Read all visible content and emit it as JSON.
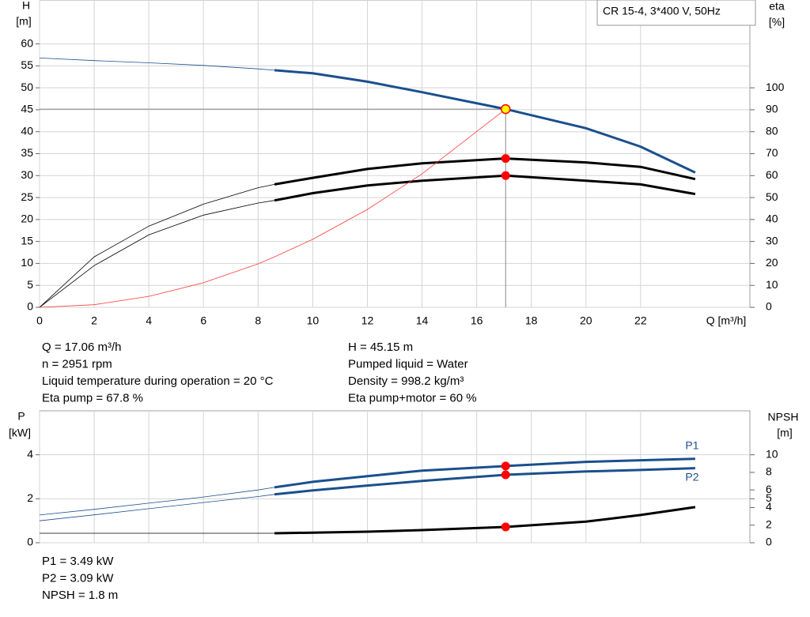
{
  "chart_data": [
    {
      "type": "line",
      "title": "CR 15-4, 3*400 V, 50Hz",
      "y_label": "H",
      "y_unit": "[m]",
      "y2_label": "eta",
      "y2_unit": "[%]",
      "x_label": "Q [m³/h]",
      "x": [
        0,
        2,
        4,
        6,
        8,
        8.6,
        10,
        12,
        14,
        17.06,
        20,
        22,
        24
      ],
      "xlim": [
        0,
        26
      ],
      "xticks": [
        0,
        2,
        4,
        6,
        8,
        10,
        12,
        14,
        16,
        18,
        20,
        22
      ],
      "ylim": [
        0,
        70
      ],
      "yticks": [
        0,
        5,
        10,
        15,
        20,
        25,
        30,
        35,
        40,
        45,
        50,
        55,
        60
      ],
      "y2lim": [
        0,
        140
      ],
      "y2ticks": [
        0,
        10,
        20,
        30,
        40,
        50,
        60,
        70,
        80,
        90,
        100
      ],
      "grid": true,
      "operating_range": [
        8.6,
        24
      ],
      "duty_point_x": 17.06,
      "series": [
        {
          "color": "#1b4f8e",
          "marker_fill": "#ffff00",
          "values": [
            56.8,
            56.2,
            55.7,
            55.1,
            54.3,
            54.0,
            53.3,
            51.4,
            49.0,
            45.15,
            40.8,
            36.6,
            30.7
          ]
        },
        {
          "color": "#000000",
          "axis": "y2",
          "values": [
            0,
            23,
            37,
            47,
            54.5,
            56,
            59,
            63,
            65.6,
            67.8,
            66,
            64,
            58.4
          ]
        },
        {
          "color": "#000000",
          "axis": "y2",
          "values": [
            0,
            19,
            33,
            42,
            47.5,
            48.7,
            52,
            55.5,
            57.7,
            60,
            57.7,
            56,
            51.6
          ]
        },
        {
          "color": "#ff3b3b",
          "line_width": 0.8,
          "values": [
            0,
            0.6,
            2.5,
            5.6,
            9.9,
            11.5,
            15.5,
            22.3,
            30.4,
            45.15,
            null,
            null,
            null
          ]
        }
      ]
    },
    {
      "type": "line",
      "y_label": "P",
      "y_unit": "[kW]",
      "y2_label": "NPSH",
      "y2_unit": "[m]",
      "x": [
        0,
        2,
        4,
        6,
        8,
        8.6,
        10,
        12,
        14,
        17.06,
        20,
        22,
        24
      ],
      "xlim": [
        0,
        26
      ],
      "ylim": [
        0,
        6
      ],
      "yticks": [
        0,
        2,
        4
      ],
      "y2lim": [
        0,
        15
      ],
      "y2ticks": [
        0,
        2,
        4,
        5,
        6,
        8,
        10
      ],
      "grid": true,
      "operating_range": [
        8.6,
        24
      ],
      "duty_point_x": 17.06,
      "series": [
        {
          "name": "P1",
          "color": "#1b4f8e",
          "values": [
            1.26,
            1.52,
            1.8,
            2.08,
            2.4,
            2.52,
            2.77,
            3.03,
            3.28,
            3.49,
            3.68,
            3.75,
            3.82
          ]
        },
        {
          "name": "P2",
          "color": "#1b4f8e",
          "values": [
            1.0,
            1.27,
            1.55,
            1.83,
            2.1,
            2.2,
            2.38,
            2.6,
            2.81,
            3.09,
            3.24,
            3.31,
            3.39
          ]
        },
        {
          "color": "#000000",
          "axis": "y2",
          "values": [
            1.08,
            1.08,
            1.08,
            1.08,
            1.08,
            1.08,
            1.15,
            1.26,
            1.44,
            1.8,
            2.4,
            3.15,
            4.05
          ]
        }
      ]
    }
  ],
  "readouts": {
    "operating": {
      "left": [
        "Q = 17.06 m³/h",
        "n = 2951 rpm",
        "Liquid temperature during operation = 20 °C",
        "Eta pump = 67.8 %"
      ],
      "right": [
        "H = 45.15 m",
        "Pumped liquid = Water",
        "Density = 998.2 kg/m³",
        "Eta pump+motor = 60 %"
      ]
    },
    "power": [
      "P1 = 3.49 kW",
      "P2 = 3.09 kW",
      "NPSH = 1.8 m"
    ]
  }
}
